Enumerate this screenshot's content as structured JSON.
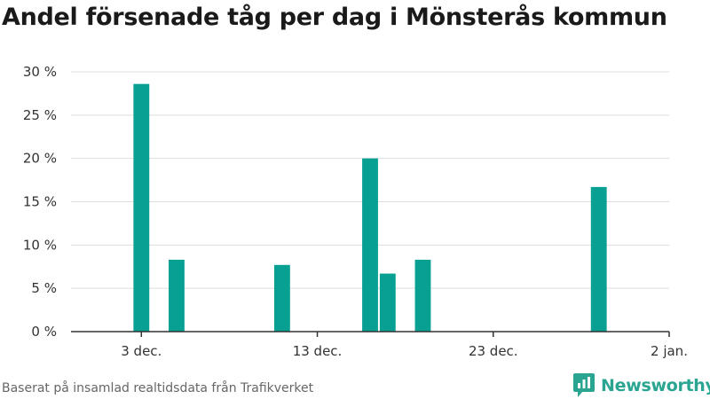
{
  "title": "Andel försenade tåg per dag i Mönsterås kommun",
  "source": "Baserat på insamlad realtidsdata från Trafikverket",
  "brand": "Newsworthy",
  "colors": {
    "bar": "#07a092",
    "grid": "#dddddd",
    "axis": "#333333",
    "brand": "#2aa592"
  },
  "chart_data": {
    "type": "bar",
    "title": "Andel försenade tåg per dag i Mönsterås kommun",
    "xlabel": "",
    "ylabel": "",
    "x_unit": "day",
    "x_range": [
      "2023-11-29",
      "2024-01-02"
    ],
    "ylim": [
      0,
      30
    ],
    "y_ticks": [
      {
        "value": 0,
        "label": "0 %"
      },
      {
        "value": 5,
        "label": "5 %"
      },
      {
        "value": 10,
        "label": "10 %"
      },
      {
        "value": 15,
        "label": "15 %"
      },
      {
        "value": 20,
        "label": "20 %"
      },
      {
        "value": 25,
        "label": "25 %"
      },
      {
        "value": 30,
        "label": "30 %"
      }
    ],
    "x_ticks": [
      {
        "date": "2023-12-03",
        "label": "3 dec."
      },
      {
        "date": "2023-12-13",
        "label": "13 dec."
      },
      {
        "date": "2023-12-23",
        "label": "23 dec."
      },
      {
        "date": "2024-01-02",
        "label": "2 jan."
      }
    ],
    "grid": true,
    "legend": "none",
    "points": [
      {
        "date": "2023-12-03",
        "value": 28.6
      },
      {
        "date": "2023-12-05",
        "value": 8.3
      },
      {
        "date": "2023-12-11",
        "value": 7.7
      },
      {
        "date": "2023-12-16",
        "value": 20.0
      },
      {
        "date": "2023-12-17",
        "value": 6.7
      },
      {
        "date": "2023-12-19",
        "value": 8.3
      },
      {
        "date": "2023-12-29",
        "value": 16.7
      }
    ]
  }
}
